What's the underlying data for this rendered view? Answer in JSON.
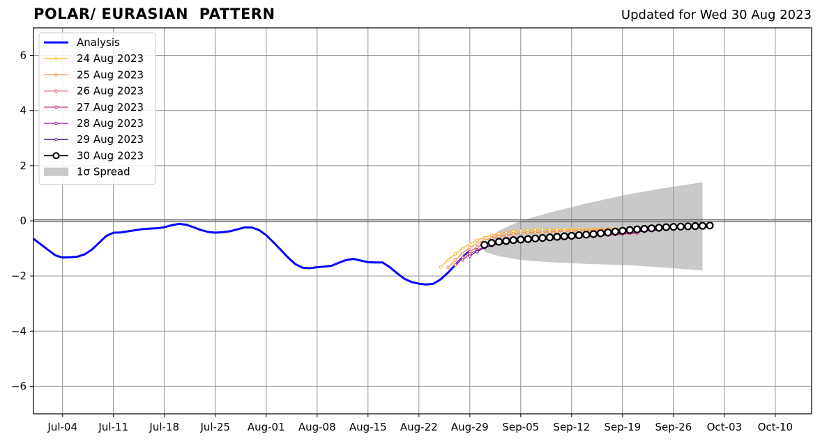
{
  "header": {
    "title": "POLAR/ EURASIAN  PATTERN",
    "updated": "Updated for Wed 30 Aug 2023"
  },
  "chart_data": {
    "type": "line",
    "title": "POLAR/ EURASIAN  PATTERN",
    "xlabel": "",
    "ylabel": "",
    "xlim": [
      "2023-06-30",
      "2023-10-15"
    ],
    "ylim": [
      -7,
      7
    ],
    "grid": true,
    "legend_position": "top-left",
    "xticks": [
      {
        "date": "2023-07-04",
        "label": "Jul-04"
      },
      {
        "date": "2023-07-11",
        "label": "Jul-11"
      },
      {
        "date": "2023-07-18",
        "label": "Jul-18"
      },
      {
        "date": "2023-07-25",
        "label": "Jul-25"
      },
      {
        "date": "2023-08-01",
        "label": "Aug-01"
      },
      {
        "date": "2023-08-08",
        "label": "Aug-08"
      },
      {
        "date": "2023-08-15",
        "label": "Aug-15"
      },
      {
        "date": "2023-08-22",
        "label": "Aug-22"
      },
      {
        "date": "2023-08-29",
        "label": "Aug-29"
      },
      {
        "date": "2023-09-05",
        "label": "Sep-05"
      },
      {
        "date": "2023-09-12",
        "label": "Sep-12"
      },
      {
        "date": "2023-09-19",
        "label": "Sep-19"
      },
      {
        "date": "2023-09-26",
        "label": "Sep-26"
      },
      {
        "date": "2023-10-03",
        "label": "Oct-03"
      },
      {
        "date": "2023-10-10",
        "label": "Oct-10"
      }
    ],
    "yticks": [
      {
        "value": 6,
        "label": "6"
      },
      {
        "value": 4,
        "label": "4"
      },
      {
        "value": 2,
        "label": "2"
      },
      {
        "value": 0,
        "label": "0"
      },
      {
        "value": -2,
        "label": "−2"
      },
      {
        "value": -4,
        "label": "−4"
      },
      {
        "value": -6,
        "label": "−6"
      }
    ],
    "analysis": {
      "name": "Analysis",
      "color": "#0000ff",
      "start_date": "2023-06-30",
      "values": [
        -0.65,
        -0.85,
        -1.05,
        -1.25,
        -1.33,
        -1.32,
        -1.3,
        -1.22,
        -1.05,
        -0.8,
        -0.55,
        -0.43,
        -0.42,
        -0.38,
        -0.34,
        -0.3,
        -0.28,
        -0.27,
        -0.23,
        -0.16,
        -0.11,
        -0.14,
        -0.23,
        -0.33,
        -0.4,
        -0.43,
        -0.41,
        -0.38,
        -0.31,
        -0.24,
        -0.24,
        -0.33,
        -0.52,
        -0.78,
        -1.05,
        -1.33,
        -1.57,
        -1.7,
        -1.72,
        -1.68,
        -1.66,
        -1.63,
        -1.52,
        -1.42,
        -1.38,
        -1.44,
        -1.5,
        -1.51,
        -1.51,
        -1.68,
        -1.9,
        -2.1,
        -2.22,
        -2.28,
        -2.31,
        -2.28,
        -2.12,
        -1.88,
        -1.6,
        -1.32,
        -1.08
      ]
    },
    "forecasts": [
      {
        "name": "24 Aug 2023",
        "color": "#ffb627",
        "start_date": "2023-08-25",
        "values": [
          -1.68,
          -1.42,
          -1.2,
          -1.0,
          -0.84,
          -0.7,
          -0.6,
          -0.52,
          -0.46,
          -0.42,
          -0.38,
          -0.36,
          -0.34,
          -0.33,
          -0.32,
          -0.32,
          -0.31,
          -0.31,
          -0.31,
          -0.3,
          -0.3,
          -0.3,
          -0.3,
          -0.29,
          -0.29,
          -0.28,
          -0.28,
          -0.28
        ]
      },
      {
        "name": "25 Aug 2023",
        "color": "#f8853a",
        "start_date": "2023-08-26",
        "values": [
          -1.7,
          -1.42,
          -1.17,
          -0.97,
          -0.82,
          -0.7,
          -0.62,
          -0.56,
          -0.52,
          -0.48,
          -0.45,
          -0.43,
          -0.42,
          -0.41,
          -0.4,
          -0.39,
          -0.38,
          -0.37,
          -0.36,
          -0.35,
          -0.34,
          -0.33,
          -0.32,
          -0.31,
          -0.3,
          -0.3,
          -0.29
        ]
      },
      {
        "name": "26 Aug 2023",
        "color": "#e2546b",
        "start_date": "2023-08-27",
        "values": [
          -1.6,
          -1.33,
          -1.12,
          -0.95,
          -0.84,
          -0.76,
          -0.7,
          -0.66,
          -0.63,
          -0.61,
          -0.6,
          -0.59,
          -0.58,
          -0.57,
          -0.56,
          -0.55,
          -0.54,
          -0.53,
          -0.52,
          -0.51,
          -0.5,
          -0.49,
          -0.48,
          -0.47,
          -0.46,
          -0.45
        ]
      },
      {
        "name": "27 Aug 2023",
        "color": "#b5287f",
        "start_date": "2023-08-28",
        "values": [
          -1.42,
          -1.2,
          -1.05,
          -0.95,
          -0.88,
          -0.83,
          -0.79,
          -0.76,
          -0.74,
          -0.72,
          -0.7,
          -0.68,
          -0.67,
          -0.66,
          -0.64,
          -0.62,
          -0.6,
          -0.58,
          -0.56,
          -0.54,
          -0.52,
          -0.5,
          -0.48,
          -0.46,
          -0.44
        ]
      },
      {
        "name": "28 Aug 2023",
        "color": "#8b1a9c",
        "start_date": "2023-08-29",
        "values": [
          -1.28,
          -1.1,
          -0.98,
          -0.9,
          -0.84,
          -0.79,
          -0.75,
          -0.72,
          -0.7,
          -0.68,
          -0.66,
          -0.64,
          -0.62,
          -0.6,
          -0.58,
          -0.56,
          -0.54,
          -0.52,
          -0.5,
          -0.48,
          -0.46,
          -0.44,
          -0.42,
          -0.4,
          -0.38,
          -0.36,
          -0.34
        ]
      },
      {
        "name": "29 Aug 2023",
        "color": "#5a1897",
        "start_date": "2023-08-30",
        "values": [
          -1.12,
          -0.98,
          -0.9,
          -0.84,
          -0.8,
          -0.76,
          -0.72,
          -0.69,
          -0.66,
          -0.63,
          -0.6,
          -0.57,
          -0.54,
          -0.51,
          -0.48,
          -0.45,
          -0.42,
          -0.39,
          -0.36,
          -0.33,
          -0.3,
          -0.28,
          -0.26,
          -0.24,
          -0.22,
          -0.2,
          -0.19,
          -0.18
        ]
      },
      {
        "name": "30 Aug 2023",
        "color": "#000000",
        "start_date": "2023-08-31",
        "values": [
          -0.87,
          -0.8,
          -0.76,
          -0.73,
          -0.7,
          -0.68,
          -0.66,
          -0.64,
          -0.62,
          -0.6,
          -0.58,
          -0.56,
          -0.54,
          -0.52,
          -0.5,
          -0.48,
          -0.45,
          -0.42,
          -0.39,
          -0.36,
          -0.33,
          -0.31,
          -0.29,
          -0.27,
          -0.25,
          -0.23,
          -0.22,
          -0.21,
          -0.2,
          -0.19,
          -0.18,
          -0.17
        ]
      }
    ],
    "spread": {
      "name": "1σ Spread",
      "color": "#c9c9c9",
      "points": [
        {
          "date": "2023-08-31",
          "upper": -0.82,
          "lower": -1.12
        },
        {
          "date": "2023-09-02",
          "upper": -0.35,
          "lower": -1.28
        },
        {
          "date": "2023-09-05",
          "upper": 0.0,
          "lower": -1.42
        },
        {
          "date": "2023-09-09",
          "upper": 0.3,
          "lower": -1.5
        },
        {
          "date": "2023-09-14",
          "upper": 0.63,
          "lower": -1.56
        },
        {
          "date": "2023-09-19",
          "upper": 0.92,
          "lower": -1.6
        },
        {
          "date": "2023-09-24",
          "upper": 1.16,
          "lower": -1.68
        },
        {
          "date": "2023-09-30",
          "upper": 1.4,
          "lower": -1.8
        }
      ]
    }
  }
}
